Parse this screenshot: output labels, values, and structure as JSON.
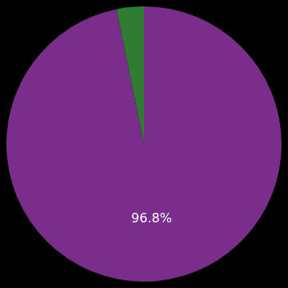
{
  "chart_data": {
    "type": "pie",
    "values": [
      96.8,
      3.2
    ],
    "colors": [
      "#7b2d8b",
      "#2e7d32"
    ],
    "data_labels": true,
    "value_labels": [
      "96.8%",
      null
    ]
  }
}
